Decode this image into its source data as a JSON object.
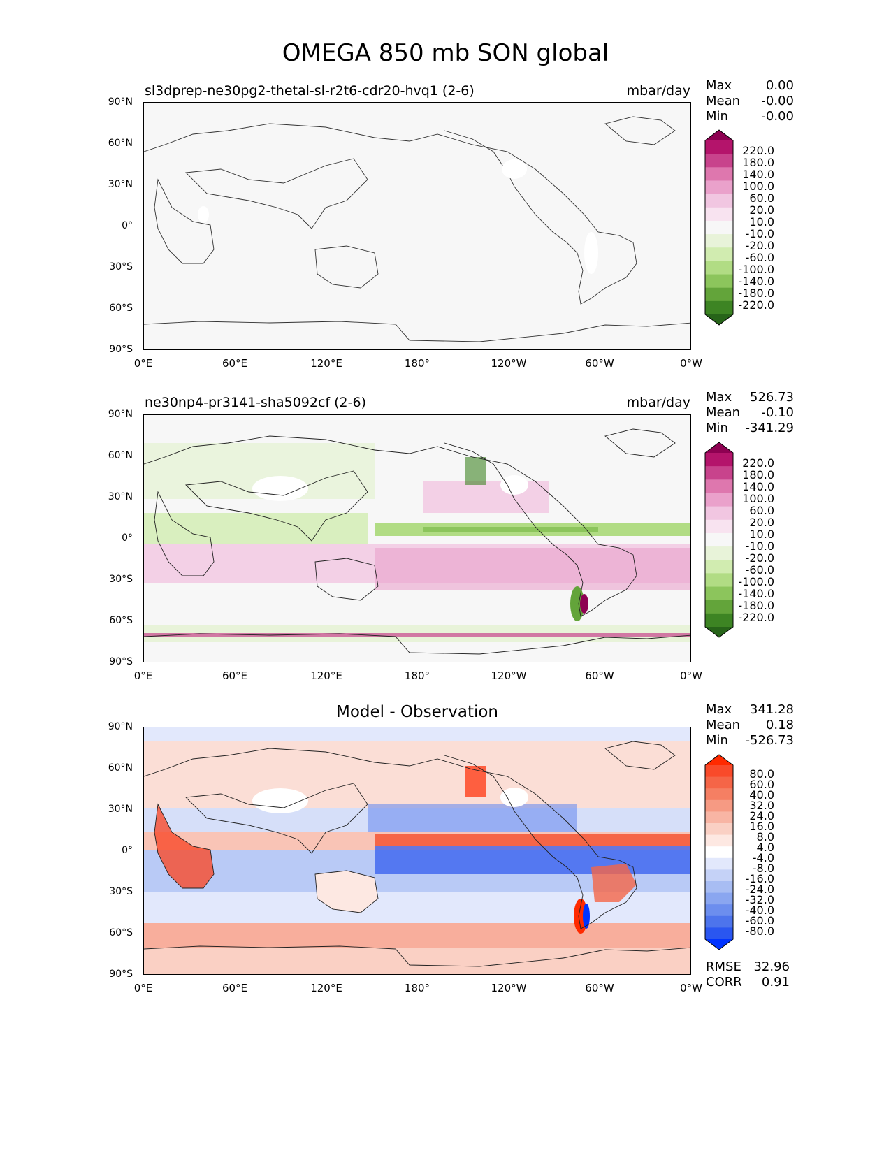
{
  "title": "OMEGA 850 mb SON global",
  "panels": [
    {
      "name": "test",
      "label": "sl3dprep-ne30pg2-thetal-sl-r2t6-cdr20-hvq1 (2-6)",
      "units": "mbar/day",
      "stats": {
        "max_label": "Max",
        "max": "0.00",
        "mean_label": "Mean",
        "mean": "-0.00",
        "min_label": "Min",
        "min": "-0.00"
      },
      "colorbar": {
        "labels": [
          "220.0",
          "180.0",
          "140.0",
          "100.0",
          "60.0",
          "20.0",
          "10.0",
          "-10.0",
          "-20.0",
          "-60.0",
          "-100.0",
          "-140.0",
          "-180.0",
          "-220.0"
        ],
        "colors": [
          "#8e0152",
          "#b4146b",
          "#c8438c",
          "#de77ae",
          "#eaa1cb",
          "#f1c6e1",
          "#f8e3f0",
          "#f7f7f7",
          "#e8f3d9",
          "#d1ecb0",
          "#b1dc84",
          "#8cc55c",
          "#63a43a",
          "#3d8423",
          "#276419"
        ]
      }
    },
    {
      "name": "reference",
      "label": "ne30np4-pr3141-sha5092cf (2-6)",
      "units": "mbar/day",
      "stats": {
        "max_label": "Max",
        "max": "526.73",
        "mean_label": "Mean",
        "mean": "-0.10",
        "min_label": "Min",
        "min": "-341.29"
      },
      "colorbar": {
        "labels": [
          "220.0",
          "180.0",
          "140.0",
          "100.0",
          "60.0",
          "20.0",
          "10.0",
          "-10.0",
          "-20.0",
          "-60.0",
          "-100.0",
          "-140.0",
          "-180.0",
          "-220.0"
        ],
        "colors": [
          "#8e0152",
          "#b4146b",
          "#c8438c",
          "#de77ae",
          "#eaa1cb",
          "#f1c6e1",
          "#f8e3f0",
          "#f7f7f7",
          "#e8f3d9",
          "#d1ecb0",
          "#b1dc84",
          "#8cc55c",
          "#63a43a",
          "#3d8423",
          "#276419"
        ]
      }
    },
    {
      "name": "difference",
      "center_title": "Model - Observation",
      "stats": {
        "max_label": "Max",
        "max": "341.28",
        "mean_label": "Mean",
        "mean": "0.18",
        "min_label": "Min",
        "min": "-526.73"
      },
      "metrics": {
        "rmse_label": "RMSE",
        "rmse": "32.96",
        "corr_label": "CORR",
        "corr": "0.91"
      },
      "colorbar": {
        "labels": [
          "80.0",
          "60.0",
          "40.0",
          "32.0",
          "24.0",
          "16.0",
          "8.0",
          "4.0",
          "-4.0",
          "-8.0",
          "-16.0",
          "-24.0",
          "-32.0",
          "-40.0",
          "-60.0",
          "-80.0"
        ],
        "colors": [
          "#ff2a00",
          "#f94a2a",
          "#f56547",
          "#f57f63",
          "#f69a83",
          "#f8b5a4",
          "#fad0c4",
          "#fde8e2",
          "#ffffff",
          "#e2e8fc",
          "#c5d2f7",
          "#a8bdf3",
          "#8aa6f0",
          "#6c8eee",
          "#4d74ec",
          "#2a56f0",
          "#0033ff"
        ]
      }
    }
  ],
  "axes": {
    "y_ticks": [
      "90°N",
      "60°N",
      "30°N",
      "0°",
      "30°S",
      "60°S",
      "90°S"
    ],
    "x_ticks": [
      "0°E",
      "60°E",
      "120°E",
      "180°",
      "120°W",
      "60°W",
      "0°W"
    ]
  }
}
